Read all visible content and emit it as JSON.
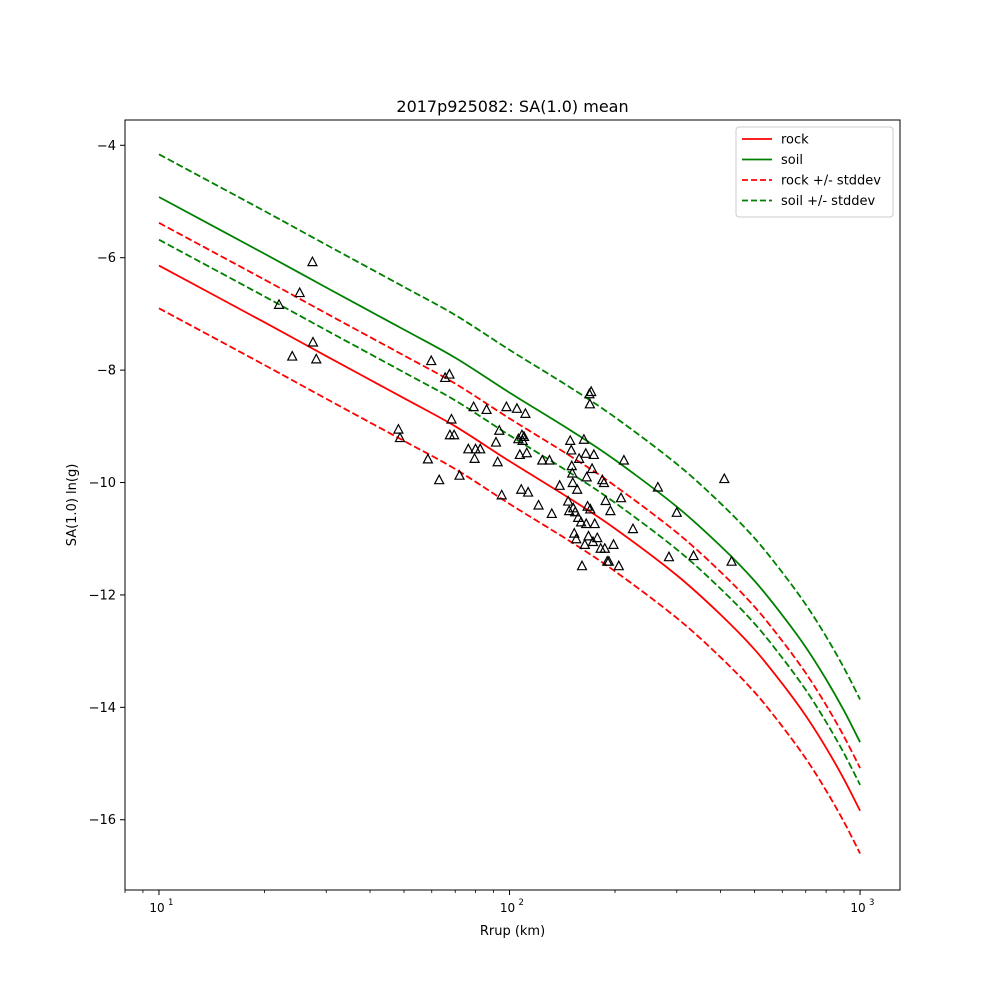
{
  "chart_data": {
    "type": "line",
    "title": "2017p925082: SA(1.0) mean",
    "xlabel": "Rrup (km)",
    "ylabel": "SA(1.0) ln(g)",
    "xscale": "log",
    "xlim": [
      8,
      1300
    ],
    "ylim": [
      -17.25,
      -3.55
    ],
    "x_ticks": [
      {
        "value": 10,
        "base": "10",
        "exp": "1"
      },
      {
        "value": 100,
        "base": "10",
        "exp": "2"
      },
      {
        "value": 1000,
        "base": "10",
        "exp": "3"
      }
    ],
    "y_ticks": [
      {
        "value": -4,
        "label": "−4"
      },
      {
        "value": -6,
        "label": "−6"
      },
      {
        "value": -8,
        "label": "−8"
      },
      {
        "value": -10,
        "label": "−10"
      },
      {
        "value": -12,
        "label": "−12"
      },
      {
        "value": -14,
        "label": "−14"
      },
      {
        "value": -16,
        "label": "−16"
      }
    ],
    "grid": false,
    "legend_position": "top-right",
    "x": [
      10,
      20,
      30,
      50,
      70,
      100,
      150,
      200,
      300,
      400,
      500,
      600,
      700,
      800,
      900,
      1000
    ],
    "series": [
      {
        "name": "rock",
        "style": "solid",
        "color": "#ff0000",
        "values": [
          -6.14,
          -7.15,
          -7.75,
          -8.5,
          -9.0,
          -9.62,
          -10.3,
          -10.82,
          -11.65,
          -12.35,
          -12.97,
          -13.58,
          -14.15,
          -14.72,
          -15.28,
          -15.84
        ]
      },
      {
        "name": "soil",
        "style": "solid",
        "color": "#008000",
        "values": [
          -4.92,
          -5.93,
          -6.53,
          -7.28,
          -7.78,
          -8.4,
          -9.08,
          -9.6,
          -10.43,
          -11.13,
          -11.75,
          -12.36,
          -12.93,
          -13.5,
          -14.06,
          -14.62
        ]
      },
      {
        "name": "rock +/- stddev",
        "style": "dashed",
        "color": "#ff0000",
        "values": [
          -5.38,
          -6.39,
          -6.99,
          -7.74,
          -8.24,
          -8.86,
          -9.54,
          -10.06,
          -10.89,
          -11.59,
          -12.21,
          -12.82,
          -13.39,
          -13.96,
          -14.52,
          -15.08
        ]
      },
      {
        "name": "rock +/- stddev",
        "style": "dashed",
        "color": "#ff0000",
        "legend": false,
        "values": [
          -6.9,
          -7.91,
          -8.51,
          -9.26,
          -9.76,
          -10.38,
          -11.06,
          -11.58,
          -12.41,
          -13.11,
          -13.73,
          -14.34,
          -14.91,
          -15.48,
          -16.04,
          -16.6
        ]
      },
      {
        "name": "soil +/- stddev",
        "style": "dashed",
        "color": "#008000",
        "values": [
          -4.16,
          -5.17,
          -5.77,
          -6.52,
          -7.02,
          -7.64,
          -8.32,
          -8.84,
          -9.67,
          -10.37,
          -10.99,
          -11.6,
          -12.17,
          -12.74,
          -13.3,
          -13.86
        ]
      },
      {
        "name": "soil +/- stddev",
        "style": "dashed",
        "color": "#008000",
        "legend": false,
        "values": [
          -5.68,
          -6.69,
          -7.29,
          -8.04,
          -8.54,
          -9.16,
          -9.84,
          -10.36,
          -11.19,
          -11.89,
          -12.51,
          -13.12,
          -13.69,
          -14.26,
          -14.82,
          -15.38
        ]
      }
    ],
    "observations": {
      "marker": "triangle-open",
      "color": "#000000",
      "points": [
        [
          22.0,
          -6.83
        ],
        [
          24.0,
          -7.75
        ],
        [
          25.2,
          -6.62
        ],
        [
          27.4,
          -6.07
        ],
        [
          27.5,
          -7.5
        ],
        [
          28.1,
          -7.8
        ],
        [
          48.2,
          -9.05
        ],
        [
          48.7,
          -9.2
        ],
        [
          58.5,
          -9.58
        ],
        [
          59.8,
          -7.83
        ],
        [
          63.0,
          -9.95
        ],
        [
          65.5,
          -8.13
        ],
        [
          67.4,
          -8.07
        ],
        [
          67.6,
          -9.15
        ],
        [
          68.3,
          -8.87
        ],
        [
          69.5,
          -9.15
        ],
        [
          72.0,
          -9.87
        ],
        [
          76.3,
          -9.4
        ],
        [
          79.0,
          -8.65
        ],
        [
          79.5,
          -9.57
        ],
        [
          80.0,
          -9.4
        ],
        [
          82.5,
          -9.4
        ],
        [
          86.0,
          -8.7
        ],
        [
          91.5,
          -9.28
        ],
        [
          92.5,
          -9.63
        ],
        [
          93.5,
          -9.07
        ],
        [
          95.0,
          -10.22
        ],
        [
          98.0,
          -8.65
        ],
        [
          105.0,
          -8.68
        ],
        [
          106.0,
          -9.22
        ],
        [
          107.0,
          -9.5
        ],
        [
          108.0,
          -10.12
        ],
        [
          108.5,
          -9.15
        ],
        [
          109.0,
          -9.25
        ],
        [
          110.0,
          -9.18
        ],
        [
          111.0,
          -8.77
        ],
        [
          112.0,
          -9.47
        ],
        [
          113.0,
          -10.17
        ],
        [
          121.0,
          -10.4
        ],
        [
          124.0,
          -9.6
        ],
        [
          130.0,
          -9.6
        ],
        [
          132.0,
          -10.55
        ],
        [
          139.0,
          -10.05
        ],
        [
          147.0,
          -10.33
        ],
        [
          148.0,
          -10.5
        ],
        [
          149.0,
          -9.25
        ],
        [
          150.0,
          -9.42
        ],
        [
          150.5,
          -9.7
        ],
        [
          151.0,
          -9.83
        ],
        [
          151.5,
          -10.0
        ],
        [
          152.0,
          -10.45
        ],
        [
          153.0,
          -10.9
        ],
        [
          154.0,
          -10.52
        ],
        [
          155.0,
          -11.0
        ],
        [
          156.0,
          -10.12
        ],
        [
          157.0,
          -10.62
        ],
        [
          158.0,
          -9.57
        ],
        [
          160.0,
          -10.7
        ],
        [
          161.0,
          -11.48
        ],
        [
          163.0,
          -9.23
        ],
        [
          164.0,
          -11.1
        ],
        [
          165.0,
          -9.48
        ],
        [
          165.5,
          -10.73
        ],
        [
          166.0,
          -9.9
        ],
        [
          167.0,
          -10.42
        ],
        [
          168.0,
          -10.95
        ],
        [
          169.0,
          -8.42
        ],
        [
          169.5,
          -8.6
        ],
        [
          170.0,
          -10.47
        ],
        [
          171.0,
          -8.38
        ],
        [
          172.0,
          -9.75
        ],
        [
          173.0,
          -11.05
        ],
        [
          174.0,
          -9.5
        ],
        [
          175.0,
          -10.73
        ],
        [
          178.0,
          -10.98
        ],
        [
          182.0,
          -11.17
        ],
        [
          184.0,
          -9.95
        ],
        [
          186.0,
          -10.0
        ],
        [
          187.0,
          -11.17
        ],
        [
          188.0,
          -10.32
        ],
        [
          190.0,
          -11.4
        ],
        [
          192.0,
          -11.4
        ],
        [
          194.0,
          -10.5
        ],
        [
          198.0,
          -11.1
        ],
        [
          205.0,
          -11.48
        ],
        [
          208.0,
          -10.27
        ],
        [
          212.0,
          -9.6
        ],
        [
          225.0,
          -10.82
        ],
        [
          265.0,
          -10.08
        ],
        [
          285.0,
          -11.32
        ],
        [
          300.0,
          -10.53
        ],
        [
          335.0,
          -11.3
        ],
        [
          410.0,
          -9.93
        ],
        [
          430.0,
          -11.4
        ]
      ]
    }
  }
}
